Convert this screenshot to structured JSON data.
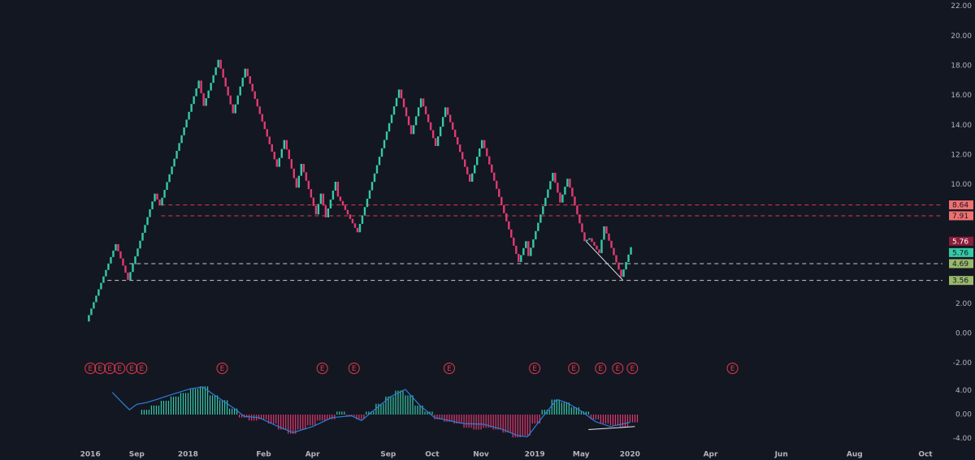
{
  "chart_data": {
    "type": "renko",
    "colors": {
      "up": "#35c9a6",
      "down": "#e23a6f",
      "background": "#131722",
      "text": "#b2b5be",
      "earnings": "#e23a4a",
      "macd": "#2f7fd8"
    },
    "xlim": [
      -36,
      350
    ],
    "xticks": [
      {
        "value": 1,
        "label": "2016"
      },
      {
        "value": 20,
        "label": "Sep"
      },
      {
        "value": 41,
        "label": "2018"
      },
      {
        "value": 72,
        "label": "Feb"
      },
      {
        "value": 92,
        "label": "Apr"
      },
      {
        "value": 123,
        "label": "Sep"
      },
      {
        "value": 141,
        "label": "Oct"
      },
      {
        "value": 161,
        "label": "Nov"
      },
      {
        "value": 183,
        "label": "2019"
      },
      {
        "value": 202,
        "label": "May"
      },
      {
        "value": 222,
        "label": "2020"
      },
      {
        "value": 255,
        "label": "Apr"
      },
      {
        "value": 284,
        "label": "Jun"
      },
      {
        "value": 314,
        "label": "Aug"
      },
      {
        "value": 343,
        "label": "Oct"
      }
    ],
    "ylim": [
      -2.95,
      22.42
    ],
    "yticks": [
      {
        "value": 22,
        "label": "22.00"
      },
      {
        "value": 20,
        "label": "20.00"
      },
      {
        "value": 18,
        "label": "18.00"
      },
      {
        "value": 16,
        "label": "16.00"
      },
      {
        "value": 14,
        "label": "14.00"
      },
      {
        "value": 12,
        "label": "12.00"
      },
      {
        "value": 10,
        "label": "10.00"
      },
      {
        "value": 2,
        "label": "2.00"
      },
      {
        "value": 0,
        "label": "0.00"
      },
      {
        "value": -2,
        "label": "-2.00"
      }
    ],
    "price": {
      "x": [
        0,
        12,
        17,
        28,
        30,
        46,
        48,
        54,
        60,
        65,
        78,
        81,
        86,
        88,
        94,
        96,
        98,
        102,
        103,
        111,
        128,
        133,
        137,
        143,
        147,
        157,
        162,
        177,
        180,
        181,
        191,
        194,
        197,
        204,
        206,
        210,
        212,
        219,
        223
      ],
      "values": [
        0.8,
        6.0,
        3.6,
        9.4,
        8.6,
        17.0,
        15.3,
        18.4,
        14.8,
        17.8,
        11.2,
        13.0,
        9.8,
        11.4,
        8.0,
        9.4,
        7.8,
        10.2,
        9.2,
        6.8,
        16.4,
        13.4,
        15.8,
        12.6,
        15.2,
        10.2,
        13.0,
        4.8,
        6.2,
        5.2,
        10.8,
        8.8,
        10.4,
        6.2,
        6.4,
        5.4,
        7.2,
        3.8,
        5.8
      ]
    },
    "levels": [
      {
        "value": 8.64,
        "x0": 30,
        "color": "#e23a4a"
      },
      {
        "value": 7.91,
        "x0": 30,
        "color": "#e23a4a"
      },
      {
        "value": 4.69,
        "x0": 17,
        "color": "#c8c8c8"
      },
      {
        "value": 3.56,
        "x0": 8,
        "color": "#c8c8c8"
      }
    ],
    "price_tags": [
      {
        "value": 8.64,
        "color": "#f07070"
      },
      {
        "value": 7.91,
        "color": "#f07070"
      },
      {
        "value": 5.76,
        "color": "#8c1d3a"
      },
      {
        "value": 5.76,
        "color": "#35c9a6"
      },
      {
        "value": 4.69,
        "color": "#9ab86a"
      },
      {
        "value": 3.56,
        "color": "#9ab86a"
      }
    ],
    "trendline": {
      "x": [
        204,
        219
      ],
      "values": [
        6.2,
        3.6
      ]
    },
    "earnings": {
      "label": "E",
      "x": [
        1,
        5,
        9,
        13,
        18,
        22,
        55,
        96,
        109,
        148,
        183,
        199,
        210,
        217,
        223,
        264
      ]
    },
    "oscillator": {
      "ylim": [
        -5,
        5.95
      ],
      "yticks": [
        {
          "value": 4,
          "label": "4.00"
        },
        {
          "value": 0,
          "label": "0.00"
        },
        {
          "value": -4,
          "label": "-4.00"
        }
      ],
      "histogram": {
        "x": [
          22,
          26,
          30,
          34,
          38,
          42,
          46,
          50,
          54,
          58,
          62,
          66,
          70,
          74,
          78,
          82,
          86,
          90,
          94,
          98,
          102,
          106,
          110,
          114,
          118,
          122,
          126,
          130,
          134,
          138,
          142,
          146,
          150,
          154,
          158,
          162,
          166,
          170,
          174,
          178,
          182,
          186,
          190,
          194,
          198,
          202,
          206,
          210,
          214,
          218,
          222
        ],
        "values": [
          0.8,
          1.5,
          2.3,
          3.0,
          3.6,
          4.3,
          4.7,
          3.2,
          2.4,
          1.0,
          -0.5,
          -1.0,
          -0.8,
          -1.5,
          -2.5,
          -3.2,
          -2.5,
          -1.8,
          -1.0,
          -0.8,
          0.5,
          -0.3,
          -0.8,
          0.5,
          1.8,
          3.0,
          4.0,
          3.2,
          1.5,
          0.5,
          -0.8,
          -1.2,
          -1.5,
          -2.2,
          -2.5,
          -2.2,
          -2.5,
          -3.0,
          -3.8,
          -3.5,
          -1.5,
          0.8,
          2.5,
          2.0,
          1.2,
          0.5,
          -0.8,
          -1.5,
          -1.8,
          -2.0,
          -1.3
        ]
      },
      "macd": {
        "x": [
          10,
          14,
          17,
          20,
          24,
          28,
          34,
          42,
          47,
          52,
          60,
          64,
          70,
          78,
          84,
          92,
          100,
          108,
          112,
          118,
          124,
          130,
          136,
          142,
          148,
          154,
          162,
          170,
          176,
          180,
          186,
          192,
          196,
          202,
          208,
          214,
          222
        ],
        "values": [
          3.7,
          2.0,
          0.8,
          1.7,
          2.0,
          2.5,
          3.3,
          4.3,
          4.6,
          3.2,
          1.0,
          -0.3,
          -0.5,
          -2.0,
          -3.0,
          -2.0,
          -0.5,
          -0.2,
          -1.0,
          1.0,
          3.0,
          4.2,
          1.5,
          -0.5,
          -1.0,
          -1.5,
          -1.6,
          -2.5,
          -3.5,
          -3.7,
          -0.5,
          2.5,
          2.0,
          0.6,
          -1.2,
          -2.0,
          -1.3
        ]
      },
      "trendline": {
        "x": [
          205,
          224
        ],
        "values": [
          -2.5,
          -2.0
        ]
      }
    }
  }
}
